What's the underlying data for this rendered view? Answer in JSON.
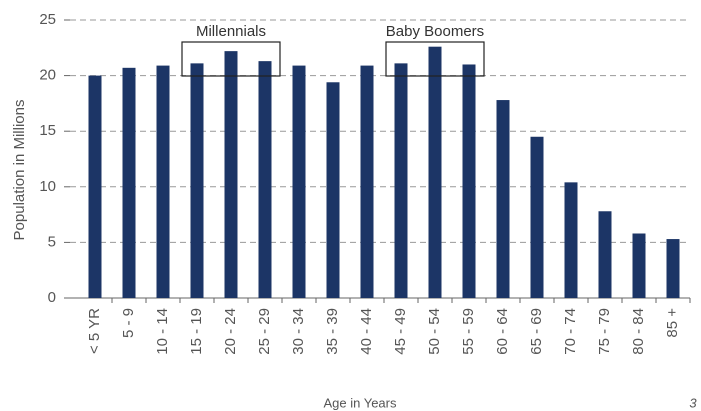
{
  "chart_data": {
    "type": "bar",
    "y_label": "Population in Millions",
    "x_label": "Age in Years",
    "categories": [
      "< 5 YR",
      "5 - 9",
      "10 - 14",
      "15 - 19",
      "20 - 24",
      "25 - 29",
      "30 - 34",
      "35 - 39",
      "40 - 44",
      "45 - 49",
      "50 - 54",
      "55 - 59",
      "60 - 64",
      "65 - 69",
      "70 - 74",
      "75 - 79",
      "80 - 84",
      "85 +"
    ],
    "values": [
      20.0,
      20.7,
      20.9,
      21.1,
      22.2,
      21.3,
      20.9,
      19.4,
      20.9,
      21.1,
      22.6,
      21.0,
      17.8,
      14.5,
      10.4,
      7.8,
      5.8,
      5.3
    ],
    "color": "#1c3566",
    "ylim": [
      0,
      25
    ],
    "yticks": [
      0,
      5,
      10,
      15,
      20,
      25
    ],
    "grid": true,
    "annotations": [
      {
        "text": "Millennials",
        "span": [
          "15 - 19",
          "25 - 29"
        ]
      },
      {
        "text": "Baby Boomers",
        "span": [
          "45 - 49",
          "55 - 59"
        ]
      }
    ]
  },
  "page_number": "3"
}
